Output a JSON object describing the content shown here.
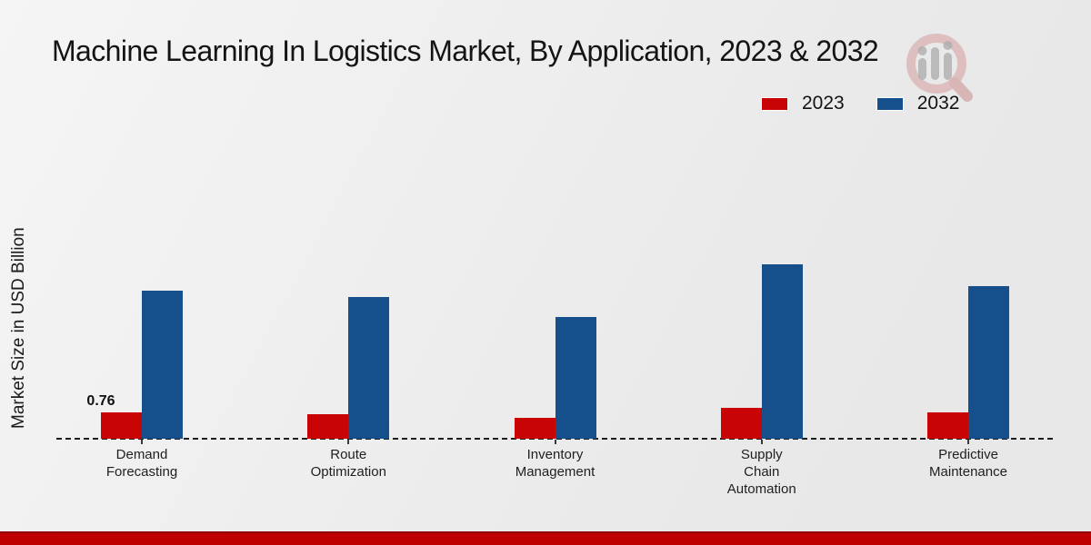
{
  "chart_data": {
    "type": "bar",
    "title": "Machine Learning In Logistics Market, By Application, 2023 & 2032",
    "ylabel": "Market Size in USD Billion",
    "xlabel": "",
    "categories": [
      "Demand Forecasting",
      "Route Optimization",
      "Inventory Management",
      "Supply Chain Automation",
      "Predictive Maintenance"
    ],
    "series": [
      {
        "name": "2023",
        "color": "#c80404",
        "values": [
          0.76,
          0.7,
          0.6,
          0.88,
          0.77
        ]
      },
      {
        "name": "2032",
        "color": "#15508c",
        "values": [
          4.28,
          4.09,
          3.51,
          5.02,
          4.41
        ]
      }
    ],
    "data_labels": [
      {
        "series_index": 0,
        "category_index": 0,
        "text": "0.76"
      }
    ],
    "ylim": [
      0,
      5.5
    ],
    "grid": false,
    "y_axis_ticks_visible": false,
    "baseline_style": "dashed",
    "legend_position": "top-right"
  },
  "colors": {
    "footer_band": "#bf0000",
    "baseline": "#1d1d1d",
    "watermark_ring": "#cf8585",
    "watermark_handle": "#c47272",
    "watermark_bars": "#adadad"
  }
}
